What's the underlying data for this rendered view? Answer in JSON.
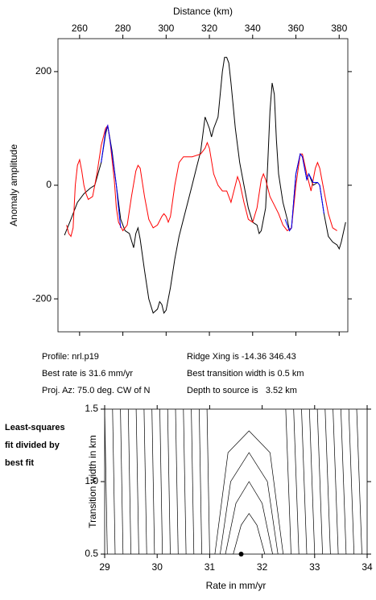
{
  "chart_data": [
    {
      "type": "line",
      "x_label": "Distance (km)",
      "y_label": "Anomaly amplitude",
      "xlim": [
        250,
        384
      ],
      "ylim": [
        -258,
        258
      ],
      "xticks": [
        260,
        280,
        300,
        320,
        340,
        360,
        380
      ],
      "yticks": [
        -200,
        0,
        200
      ],
      "series": [
        {
          "color": "#000000",
          "x": [
            253,
            256,
            259,
            262,
            265,
            267,
            270,
            272,
            273,
            275,
            277,
            279,
            281,
            283,
            285,
            286,
            287,
            288,
            290,
            292,
            294,
            296,
            297,
            298,
            299,
            300,
            302,
            304,
            306,
            308,
            310,
            312,
            314,
            316,
            318,
            320,
            321,
            322,
            324,
            326,
            327,
            328,
            329,
            330,
            332,
            334,
            336,
            338,
            340,
            342,
            343,
            344,
            346,
            347,
            348,
            349,
            350,
            351,
            352,
            354,
            356,
            357,
            358,
            360,
            362,
            363,
            365,
            366,
            368,
            370,
            371,
            373,
            375,
            377,
            379,
            380,
            381,
            383
          ],
          "values": [
            -88,
            -60,
            -30,
            -15,
            -5,
            0,
            40,
            90,
            105,
            60,
            0,
            -60,
            -80,
            -85,
            -110,
            -85,
            -75,
            -95,
            -150,
            -200,
            -225,
            -218,
            -205,
            -210,
            -225,
            -220,
            -180,
            -130,
            -90,
            -60,
            -30,
            0,
            30,
            60,
            120,
            100,
            85,
            100,
            120,
            200,
            225,
            225,
            215,
            180,
            100,
            40,
            0,
            -40,
            -65,
            -70,
            -85,
            -80,
            -40,
            40,
            130,
            180,
            160,
            80,
            20,
            -30,
            -60,
            -80,
            -75,
            20,
            55,
            50,
            10,
            20,
            0,
            5,
            0,
            -50,
            -90,
            -100,
            -105,
            -112,
            -100,
            -65
          ]
        },
        {
          "color": "#ff0000",
          "x": [
            254,
            255,
            256,
            257,
            258,
            259,
            260,
            261,
            262,
            263,
            264,
            266,
            268,
            270,
            272,
            273,
            274,
            276,
            277,
            278,
            280,
            282,
            284,
            286,
            287,
            288,
            290,
            292,
            294,
            296,
            298,
            299,
            300,
            301,
            302,
            304,
            306,
            308,
            312,
            316,
            318,
            319,
            320,
            322,
            324,
            326,
            328,
            330,
            332,
            333,
            334,
            336,
            338,
            340,
            342,
            344,
            345,
            346,
            348,
            350,
            352,
            354,
            356,
            358,
            360,
            362,
            363,
            365,
            367,
            369,
            370,
            371,
            373,
            375,
            377,
            379
          ],
          "values": [
            -70,
            -85,
            -90,
            -75,
            0,
            35,
            45,
            25,
            0,
            -15,
            -25,
            -20,
            20,
            70,
            100,
            105,
            80,
            10,
            -40,
            -65,
            -80,
            -70,
            -20,
            25,
            35,
            30,
            -20,
            -60,
            -75,
            -70,
            -55,
            -50,
            -55,
            -65,
            -55,
            0,
            40,
            50,
            50,
            55,
            65,
            75,
            65,
            20,
            0,
            -10,
            -10,
            -30,
            0,
            15,
            5,
            -30,
            -60,
            -65,
            -40,
            10,
            20,
            10,
            -20,
            -35,
            -50,
            -70,
            -80,
            -75,
            0,
            55,
            55,
            20,
            -10,
            30,
            40,
            30,
            -10,
            -50,
            -75,
            -80
          ]
        },
        {
          "color": "#0000ff",
          "x": [
            270,
            272,
            273,
            275,
            277,
            278,
            279,
            null,
            355,
            357,
            358,
            360,
            362,
            363,
            365,
            366,
            368,
            370,
            371,
            373
          ],
          "values": [
            40,
            95,
            105,
            55,
            0,
            -40,
            -75,
            null,
            -60,
            -80,
            -75,
            20,
            55,
            50,
            10,
            20,
            5,
            5,
            0,
            -50
          ]
        }
      ]
    },
    {
      "type": "contour",
      "x_label": "Rate in mm/yr",
      "y_label": "Transition width in km",
      "annotation": [
        "Least-squares",
        "fit divided by",
        "best fit"
      ],
      "xlim": [
        29,
        34
      ],
      "ylim": [
        0.5,
        1.5
      ],
      "xticks": [
        29,
        30,
        31,
        32,
        33,
        34
      ],
      "yticks": [
        {
          "value": 0.5,
          "label": "0.5"
        },
        {
          "value": 1,
          "label": "1.0"
        },
        {
          "value": 1.5,
          "label": "1.5"
        }
      ],
      "color": "#000000",
      "lines": [
        {
          "x": [
            29.05,
            29.0
          ],
          "y": [
            0.5,
            1.5
          ]
        },
        {
          "x": [
            29.2,
            29.15
          ],
          "y": [
            0.5,
            1.5
          ]
        },
        {
          "x": [
            29.35,
            29.3
          ],
          "y": [
            0.5,
            1.5
          ]
        },
        {
          "x": [
            29.5,
            29.45
          ],
          "y": [
            0.5,
            1.5
          ]
        },
        {
          "x": [
            29.65,
            29.6
          ],
          "y": [
            0.5,
            1.5
          ]
        },
        {
          "x": [
            29.8,
            29.75
          ],
          "y": [
            0.5,
            1.5
          ]
        },
        {
          "x": [
            29.95,
            29.9
          ],
          "y": [
            0.5,
            1.5
          ]
        },
        {
          "x": [
            30.1,
            30.05
          ],
          "y": [
            0.5,
            1.5
          ]
        },
        {
          "x": [
            30.25,
            30.2
          ],
          "y": [
            0.5,
            1.5
          ]
        },
        {
          "x": [
            30.4,
            30.35
          ],
          "y": [
            0.5,
            1.5
          ]
        },
        {
          "x": [
            30.55,
            30.5
          ],
          "y": [
            0.5,
            1.5
          ]
        },
        {
          "x": [
            30.7,
            30.65
          ],
          "y": [
            0.5,
            1.5
          ]
        },
        {
          "x": [
            30.85,
            30.8
          ],
          "y": [
            0.5,
            1.5
          ]
        },
        {
          "x": [
            31.0,
            30.95
          ],
          "y": [
            0.5,
            1.5
          ]
        },
        {
          "x": [
            31.45,
            31.6,
            31.75,
            31.9,
            32.05
          ],
          "y": [
            0.5,
            0.7,
            0.78,
            0.7,
            0.5
          ]
        },
        {
          "x": [
            31.3,
            31.5,
            31.75,
            32.0,
            32.2
          ],
          "y": [
            0.5,
            0.85,
            1.0,
            0.85,
            0.5
          ]
        },
        {
          "x": [
            31.2,
            31.4,
            31.75,
            32.1,
            32.3
          ],
          "y": [
            0.5,
            1.0,
            1.2,
            1.0,
            0.5
          ]
        },
        {
          "x": [
            31.1,
            31.35,
            31.75,
            32.15,
            32.4
          ],
          "y": [
            0.5,
            1.2,
            1.35,
            1.2,
            0.5
          ]
        },
        {
          "x": [
            32.55,
            32.45
          ],
          "y": [
            0.5,
            1.5
          ]
        },
        {
          "x": [
            32.7,
            32.6
          ],
          "y": [
            0.5,
            1.5
          ]
        },
        {
          "x": [
            32.85,
            32.75
          ],
          "y": [
            0.5,
            1.5
          ]
        },
        {
          "x": [
            33.0,
            32.9
          ],
          "y": [
            0.5,
            1.5
          ]
        },
        {
          "x": [
            33.15,
            33.05
          ],
          "y": [
            0.5,
            1.5
          ]
        },
        {
          "x": [
            33.3,
            33.2
          ],
          "y": [
            0.5,
            1.5
          ]
        },
        {
          "x": [
            33.45,
            33.35
          ],
          "y": [
            0.5,
            1.5
          ]
        },
        {
          "x": [
            33.6,
            33.5
          ],
          "y": [
            0.5,
            1.5
          ]
        },
        {
          "x": [
            33.75,
            33.65
          ],
          "y": [
            0.5,
            1.5
          ]
        },
        {
          "x": [
            33.9,
            33.8
          ],
          "y": [
            0.5,
            1.5
          ]
        }
      ],
      "best_fit": {
        "x": 31.6,
        "y": 0.5
      }
    }
  ],
  "info": {
    "left": [
      "Profile: nrl.p19",
      "Best rate is 31.6 mm/yr",
      "Proj. Az: 75.0 deg. CW of N"
    ],
    "right": [
      "Ridge Xing is -14.36 346.43",
      "Best transition width is 0.5 km",
      "Depth to source is   3.52 km"
    ]
  }
}
